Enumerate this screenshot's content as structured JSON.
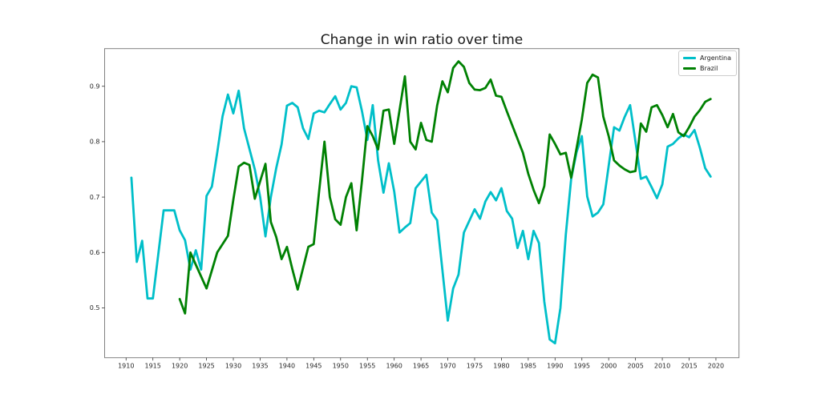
{
  "figure": {
    "background": "#ffffff",
    "spine_color": "#808080",
    "tick_color": "#333333",
    "text_color": "#262626"
  },
  "chart_data": {
    "type": "line",
    "title": "Change in win ratio over time",
    "xlabel": "",
    "ylabel": "",
    "xlim": [
      1906.0,
      2024.3
    ],
    "ylim": [
      0.41,
      0.968
    ],
    "xticks": [
      1910,
      1915,
      1920,
      1925,
      1930,
      1935,
      1940,
      1945,
      1950,
      1955,
      1960,
      1965,
      1970,
      1975,
      1980,
      1985,
      1990,
      1995,
      2000,
      2005,
      2010,
      2015,
      2020
    ],
    "yticks": [
      0.5,
      0.6,
      0.7,
      0.8,
      0.9
    ],
    "grid": false,
    "legend": {
      "position": "upper right",
      "entries": [
        "Argentina",
        "Brazil"
      ]
    },
    "series": [
      {
        "name": "Argentina",
        "color": "#00bfc9",
        "x": [
          1911,
          1912,
          1913,
          1914,
          1915,
          1917,
          1919,
          1920,
          1921,
          1922,
          1923,
          1924,
          1925,
          1926,
          1927,
          1928,
          1929,
          1930,
          1931,
          1932,
          1934,
          1935,
          1936,
          1937,
          1938,
          1939,
          1940,
          1941,
          1942,
          1943,
          1944,
          1945,
          1946,
          1947,
          1948,
          1949,
          1950,
          1951,
          1952,
          1953,
          1954,
          1955,
          1956,
          1957,
          1958,
          1959,
          1960,
          1961,
          1962,
          1963,
          1964,
          1966,
          1967,
          1968,
          1970,
          1971,
          1972,
          1973,
          1975,
          1976,
          1977,
          1978,
          1979,
          1980,
          1981,
          1982,
          1983,
          1984,
          1985,
          1986,
          1987,
          1988,
          1989,
          1990,
          1991,
          1992,
          1993,
          1994,
          1995,
          1996,
          1997,
          1998,
          1999,
          2001,
          2002,
          2003,
          2004,
          2005,
          2006,
          2007,
          2008,
          2009,
          2010,
          2011,
          2012,
          2013,
          2014,
          2015,
          2016,
          2017,
          2018,
          2019
        ],
        "values": [
          0.735,
          0.583,
          0.621,
          0.517,
          0.517,
          0.676,
          0.676,
          0.64,
          0.622,
          0.569,
          0.604,
          0.569,
          0.702,
          0.719,
          0.78,
          0.846,
          0.885,
          0.851,
          0.892,
          0.824,
          0.75,
          0.7,
          0.629,
          0.7,
          0.752,
          0.795,
          0.865,
          0.87,
          0.862,
          0.824,
          0.805,
          0.851,
          0.856,
          0.853,
          0.868,
          0.882,
          0.858,
          0.87,
          0.9,
          0.898,
          0.855,
          0.803,
          0.866,
          0.766,
          0.708,
          0.761,
          0.71,
          0.636,
          0.645,
          0.653,
          0.716,
          0.74,
          0.672,
          0.658,
          0.477,
          0.535,
          0.56,
          0.636,
          0.678,
          0.661,
          0.692,
          0.709,
          0.694,
          0.716,
          0.675,
          0.661,
          0.608,
          0.639,
          0.588,
          0.639,
          0.617,
          0.511,
          0.443,
          0.436,
          0.5,
          0.632,
          0.733,
          0.781,
          0.81,
          0.701,
          0.665,
          0.672,
          0.687,
          0.826,
          0.82,
          0.845,
          0.866,
          0.8,
          0.733,
          0.737,
          0.718,
          0.698,
          0.723,
          0.791,
          0.796,
          0.806,
          0.813,
          0.808,
          0.821,
          0.789,
          0.752,
          0.737
        ]
      },
      {
        "name": "Brazil",
        "color": "#008103",
        "x": [
          1920,
          1921,
          1922,
          1923,
          1925,
          1927,
          1929,
          1930,
          1931,
          1932,
          1933,
          1934,
          1936,
          1937,
          1938,
          1939,
          1940,
          1941,
          1942,
          1944,
          1945,
          1946,
          1947,
          1948,
          1949,
          1950,
          1951,
          1952,
          1953,
          1954,
          1955,
          1956,
          1957,
          1958,
          1959,
          1960,
          1962,
          1963,
          1964,
          1965,
          1966,
          1967,
          1968,
          1969,
          1970,
          1971,
          1972,
          1973,
          1974,
          1975,
          1976,
          1977,
          1978,
          1979,
          1980,
          1981,
          1982,
          1984,
          1985,
          1986,
          1987,
          1988,
          1989,
          1990,
          1991,
          1992,
          1993,
          1995,
          1996,
          1997,
          1998,
          1999,
          2000,
          2001,
          2002,
          2003,
          2004,
          2005,
          2006,
          2007,
          2008,
          2009,
          2010,
          2011,
          2012,
          2013,
          2014,
          2015,
          2016,
          2017,
          2018,
          2019
        ],
        "values": [
          0.516,
          0.49,
          0.6,
          0.578,
          0.535,
          0.6,
          0.63,
          0.695,
          0.755,
          0.762,
          0.758,
          0.697,
          0.76,
          0.655,
          0.628,
          0.588,
          0.61,
          0.57,
          0.533,
          0.61,
          0.615,
          0.71,
          0.8,
          0.7,
          0.66,
          0.65,
          0.7,
          0.725,
          0.64,
          0.73,
          0.828,
          0.81,
          0.786,
          0.856,
          0.858,
          0.796,
          0.918,
          0.8,
          0.786,
          0.834,
          0.803,
          0.8,
          0.865,
          0.909,
          0.889,
          0.933,
          0.945,
          0.935,
          0.906,
          0.894,
          0.893,
          0.897,
          0.912,
          0.883,
          0.881,
          0.855,
          0.83,
          0.78,
          0.742,
          0.713,
          0.689,
          0.72,
          0.813,
          0.796,
          0.777,
          0.78,
          0.735,
          0.84,
          0.906,
          0.921,
          0.916,
          0.845,
          0.81,
          0.766,
          0.757,
          0.75,
          0.745,
          0.747,
          0.833,
          0.818,
          0.862,
          0.866,
          0.848,
          0.826,
          0.85,
          0.817,
          0.81,
          0.826,
          0.845,
          0.857,
          0.872,
          0.877
        ]
      }
    ]
  }
}
